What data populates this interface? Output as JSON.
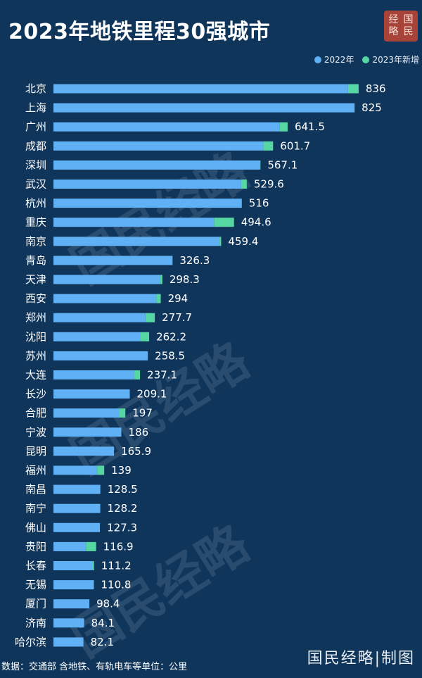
{
  "header": {
    "title": "2023年地铁里程30强城市",
    "seal_text": [
      "经",
      "国",
      "略",
      "民"
    ]
  },
  "legend": [
    {
      "label": "2022年",
      "color": "#5fb0f5"
    },
    {
      "label": "2023年新增",
      "color": "#56d6a3"
    }
  ],
  "footer": {
    "source": "数据：交通部 含地铁、有轨电车等单位：公里",
    "brand": "国民经略|制图"
  },
  "watermark": "国民经略",
  "colors": {
    "background": "#10355a",
    "base": "#5fb0f5",
    "added": "#56d6a3"
  },
  "chart_data": {
    "type": "bar",
    "orientation": "horizontal",
    "stacked": true,
    "title": "2023年地铁里程30强城市",
    "unit": "公里",
    "categories": [
      "北京",
      "上海",
      "广州",
      "成都",
      "深圳",
      "武汉",
      "杭州",
      "重庆",
      "南京",
      "青岛",
      "天津",
      "西安",
      "郑州",
      "沈阳",
      "苏州",
      "大连",
      "长沙",
      "合肥",
      "宁波",
      "昆明",
      "福州",
      "南昌",
      "南宁",
      "佛山",
      "贵阳",
      "长春",
      "无锡",
      "厦门",
      "济南",
      "哈尔滨"
    ],
    "totals": [
      836,
      825,
      641.5,
      601.7,
      567.1,
      529.6,
      516,
      494.6,
      459.4,
      326.3,
      298.3,
      294,
      277.7,
      262.2,
      258.5,
      237.1,
      209.1,
      197,
      186,
      165.9,
      139,
      128.5,
      128.2,
      127.3,
      116.9,
      111.2,
      110.8,
      98.4,
      84.1,
      82.1
    ],
    "total_labels": [
      "836",
      "825",
      "641.5",
      "601.7",
      "567.1",
      "529.6",
      "516",
      "494.6",
      "459.4",
      "326.3",
      "298.3",
      "294",
      "277.7",
      "262.2",
      "258.5",
      "237.1",
      "209.1",
      "197",
      "186",
      "165.9",
      "139",
      "128.5",
      "128.2",
      "127.3",
      "116.9",
      "111.2",
      "110.8",
      "98.4",
      "84.1",
      "82.1"
    ],
    "series": [
      {
        "name": "2022年",
        "values": [
          807,
          825,
          620,
          575,
          565,
          514,
          516,
          440,
          455,
          326.3,
          293,
          282,
          252,
          238,
          258.5,
          221,
          209.1,
          180,
          186,
          165.9,
          120,
          128.5,
          128.2,
          127.3,
          89,
          108,
          110.8,
          98.4,
          84.1,
          82.1
        ]
      },
      {
        "name": "2023年新增",
        "values": [
          29,
          0,
          21.5,
          26.7,
          2.1,
          15.6,
          0,
          54.6,
          4.4,
          0,
          5.3,
          12,
          25.7,
          24.2,
          0,
          16.1,
          0,
          17,
          0,
          0,
          19,
          0,
          0,
          0,
          27.9,
          3.2,
          0,
          0,
          0,
          0
        ]
      }
    ],
    "legend_position": "top-right",
    "grid": false
  }
}
